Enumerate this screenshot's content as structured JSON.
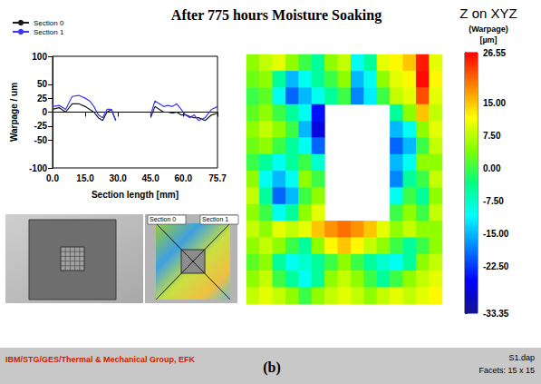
{
  "title": "After 775 hours Moisture Soaking",
  "chart_data": [
    {
      "type": "line",
      "x": [
        0,
        3,
        6,
        9,
        12,
        15,
        17,
        19,
        21,
        23,
        25,
        27,
        29,
        37,
        45,
        47,
        49,
        51,
        53,
        55,
        57,
        59,
        61,
        63,
        65,
        67,
        70,
        73,
        75.7
      ],
      "series": [
        {
          "name": "Section 0",
          "color": "#1a1a1a",
          "values": [
            5,
            8,
            0,
            15,
            15,
            10,
            5,
            0,
            -10,
            -15,
            0,
            5,
            -15,
            null,
            -10,
            10,
            5,
            0,
            0,
            -2,
            0,
            -5,
            -5,
            -8,
            -10,
            -10,
            -15,
            -5,
            -2
          ]
        },
        {
          "name": "Section 1",
          "color": "#3a3af0",
          "values": [
            10,
            12,
            5,
            28,
            30,
            25,
            20,
            10,
            -5,
            -10,
            5,
            5,
            -15,
            null,
            -5,
            20,
            15,
            10,
            12,
            10,
            15,
            5,
            -5,
            -10,
            -5,
            -15,
            -10,
            5,
            10
          ]
        }
      ],
      "xlabel": "Section length [mm]",
      "ylabel": "Warpage / um",
      "xlim": [
        0,
        75.7
      ],
      "xticks": [
        {
          "value": 0,
          "label": "0.0"
        },
        {
          "value": 15,
          "label": "15.0"
        },
        {
          "value": 30,
          "label": "30.0"
        },
        {
          "value": 45,
          "label": "45.0"
        },
        {
          "value": 60,
          "label": "60.0"
        },
        75.7
      ],
      "ylim": [
        -100,
        100
      ],
      "yticks": [
        -100,
        -50,
        -25,
        0,
        25,
        50,
        100
      ],
      "legend": "upper left",
      "grid": false
    },
    {
      "type": "heatmap",
      "title": "Z on XYZ",
      "subtitle": "(Warpage)",
      "unit": "[µm]",
      "cells": [
        [
          5,
          8,
          10,
          5,
          0,
          -5,
          5,
          8,
          -10,
          -5,
          10,
          12,
          15,
          25,
          10
        ],
        [
          3,
          5,
          -5,
          -15,
          -10,
          -5,
          0,
          5,
          -15,
          -10,
          5,
          10,
          12,
          26,
          12
        ],
        [
          0,
          2,
          -10,
          -20,
          -15,
          -10,
          -5,
          0,
          -18,
          -12,
          0,
          8,
          10,
          22,
          10
        ],
        [
          2,
          5,
          0,
          -5,
          -10,
          -25,
          null,
          null,
          null,
          null,
          null,
          -5,
          5,
          15,
          8
        ],
        [
          5,
          8,
          5,
          0,
          -15,
          -28,
          null,
          null,
          null,
          null,
          null,
          -15,
          -10,
          5,
          10
        ],
        [
          3,
          5,
          0,
          -5,
          -10,
          -20,
          null,
          null,
          null,
          null,
          null,
          -20,
          -15,
          0,
          8
        ],
        [
          0,
          -5,
          -10,
          -5,
          0,
          -8,
          null,
          null,
          null,
          null,
          null,
          -15,
          -10,
          5,
          5
        ],
        [
          5,
          -10,
          -15,
          -10,
          5,
          0,
          null,
          null,
          null,
          null,
          null,
          -18,
          -5,
          0,
          8
        ],
        [
          8,
          -5,
          -20,
          -15,
          0,
          5,
          null,
          null,
          null,
          null,
          null,
          -10,
          0,
          -5,
          5
        ],
        [
          5,
          0,
          -10,
          -5,
          5,
          10,
          null,
          null,
          null,
          null,
          null,
          0,
          5,
          0,
          8
        ],
        [
          8,
          5,
          10,
          8,
          10,
          15,
          18,
          20,
          18,
          15,
          10,
          5,
          8,
          5,
          5
        ],
        [
          5,
          8,
          5,
          0,
          -5,
          5,
          12,
          15,
          12,
          8,
          5,
          0,
          -5,
          0,
          5
        ],
        [
          2,
          5,
          -5,
          -10,
          -8,
          -5,
          0,
          5,
          0,
          -5,
          -8,
          -10,
          -5,
          5,
          8
        ],
        [
          5,
          8,
          0,
          -5,
          -10,
          -5,
          5,
          8,
          5,
          0,
          -5,
          0,
          5,
          8,
          10
        ],
        [
          8,
          10,
          8,
          5,
          0,
          5,
          8,
          10,
          8,
          5,
          8,
          10,
          8,
          10,
          12
        ]
      ],
      "colorbar_range": [
        -33.35,
        26.55
      ],
      "colorbar_ticks": [
        26.55,
        {
          "value": 15,
          "label": "15.00"
        },
        {
          "value": 7.5,
          "label": "7.50"
        },
        {
          "value": 0,
          "label": "0.00"
        },
        {
          "value": -7.5,
          "label": "-7.50"
        },
        {
          "value": -15,
          "label": "-15.00"
        },
        {
          "value": -22.5,
          "label": "-22.50"
        },
        -33.35
      ]
    }
  ],
  "thumbnails": {
    "section_labels": [
      "Section 0",
      "Section 1"
    ]
  },
  "footer": {
    "left": "IBM/STG/GES/Thermal & Mechanical Group, EFK",
    "center": "(b)",
    "right": [
      "S1.dap",
      "Facets: 15 x 15"
    ]
  }
}
